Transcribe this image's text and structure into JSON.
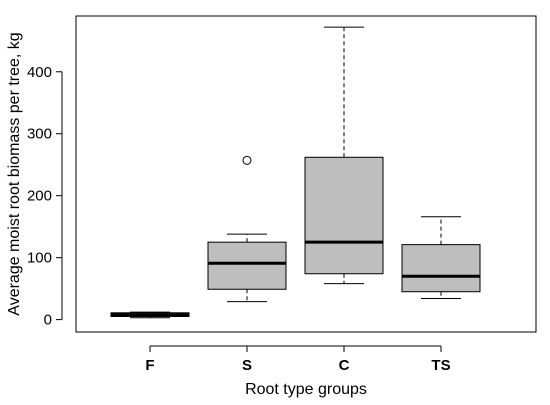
{
  "chart_data": {
    "type": "boxplot",
    "title": "",
    "xlabel": "Root type groups",
    "ylabel": "Average moist root biomass per tree, kg",
    "ylim": [
      -20,
      490
    ],
    "yticks": [
      0,
      100,
      200,
      300,
      400
    ],
    "grid": false,
    "box_color": "#bebebe",
    "categories": [
      "F",
      "S",
      "C",
      "TS"
    ],
    "boxes": [
      {
        "category": "F",
        "whisker_low": 3,
        "q1": 5,
        "median": 8,
        "q3": 11,
        "whisker_high": 12,
        "outliers": []
      },
      {
        "category": "S",
        "whisker_low": 29,
        "q1": 49,
        "median": 91,
        "q3": 125,
        "whisker_high": 138,
        "outliers": [
          257
        ]
      },
      {
        "category": "C",
        "whisker_low": 58,
        "q1": 74,
        "median": 125,
        "q3": 262,
        "whisker_high": 472,
        "outliers": []
      },
      {
        "category": "TS",
        "whisker_low": 34,
        "q1": 45,
        "median": 70,
        "q3": 121,
        "whisker_high": 166,
        "outliers": []
      }
    ]
  }
}
